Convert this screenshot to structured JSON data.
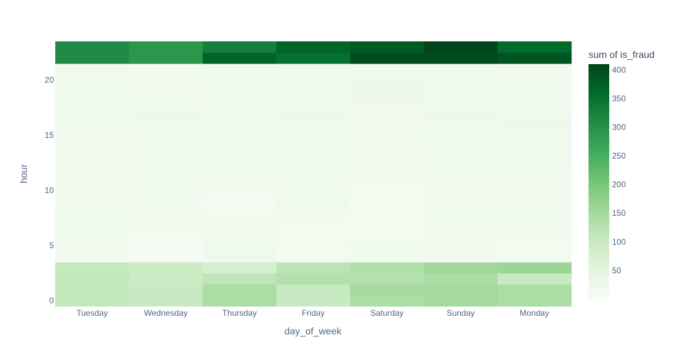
{
  "chart_data": {
    "type": "heatmap",
    "x": [
      "Tuesday",
      "Wednesday",
      "Thursday",
      "Friday",
      "Saturday",
      "Sunday",
      "Monday"
    ],
    "y": [
      0,
      1,
      2,
      3,
      4,
      5,
      6,
      7,
      8,
      9,
      10,
      11,
      12,
      13,
      14,
      15,
      16,
      17,
      18,
      19,
      20,
      21,
      22,
      23
    ],
    "xlabel": "day_of_week",
    "ylabel": "hour",
    "y_ticks": [
      0,
      5,
      10,
      15,
      20
    ],
    "zmin": 0,
    "zmax": 410,
    "colorbar": {
      "title": "sum of is_fraud",
      "ticks": [
        50,
        100,
        150,
        200,
        250,
        300,
        350,
        400
      ],
      "colorscale": "Greens"
    },
    "z": [
      [
        110,
        100,
        140,
        100,
        140,
        150,
        140
      ],
      [
        110,
        100,
        140,
        100,
        150,
        150,
        140
      ],
      [
        110,
        95,
        115,
        130,
        130,
        140,
        100
      ],
      [
        105,
        95,
        80,
        120,
        135,
        155,
        160
      ],
      [
        15,
        8,
        20,
        12,
        18,
        14,
        12
      ],
      [
        15,
        8,
        22,
        12,
        20,
        14,
        12
      ],
      [
        18,
        12,
        18,
        12,
        12,
        14,
        15
      ],
      [
        25,
        15,
        14,
        12,
        10,
        20,
        18
      ],
      [
        18,
        22,
        12,
        15,
        12,
        20,
        18
      ],
      [
        15,
        18,
        8,
        25,
        10,
        15,
        15
      ],
      [
        15,
        18,
        15,
        18,
        10,
        15,
        18
      ],
      [
        15,
        22,
        18,
        20,
        15,
        15,
        15
      ],
      [
        15,
        20,
        18,
        20,
        20,
        20,
        20
      ],
      [
        15,
        20,
        22,
        20,
        15,
        20,
        20
      ],
      [
        15,
        18,
        22,
        20,
        20,
        20,
        22
      ],
      [
        20,
        22,
        22,
        20,
        25,
        25,
        22
      ],
      [
        20,
        22,
        22,
        20,
        15,
        20,
        25
      ],
      [
        18,
        25,
        22,
        25,
        15,
        25,
        22
      ],
      [
        18,
        20,
        22,
        20,
        25,
        20,
        18
      ],
      [
        20,
        20,
        22,
        20,
        25,
        20,
        18
      ],
      [
        18,
        15,
        18,
        20,
        25,
        22,
        18
      ],
      [
        15,
        15,
        18,
        20,
        20,
        22,
        15
      ],
      [
        310,
        290,
        370,
        350,
        400,
        400,
        390
      ],
      [
        310,
        290,
        330,
        370,
        380,
        410,
        360
      ]
    ]
  }
}
